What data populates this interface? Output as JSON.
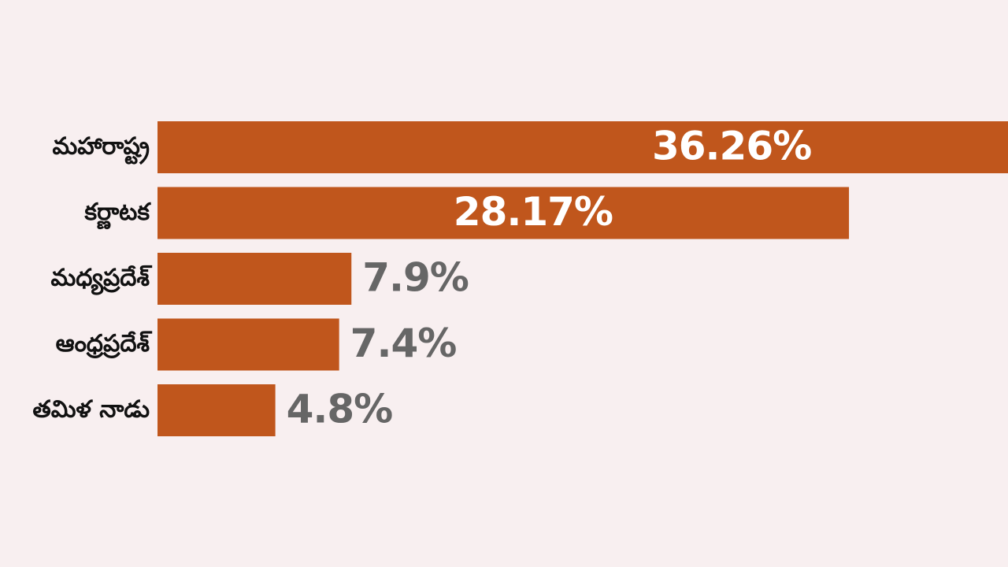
{
  "chart_data": {
    "type": "bar",
    "orientation": "horizontal",
    "categories": [
      "మహారాష్ట్ర",
      "కర్ణాటక",
      "మధ్యప్రదేశ్",
      "ఆంధ్రప్రదేశ్",
      "తమిళ నాడు"
    ],
    "values": [
      36.26,
      28.17,
      7.9,
      7.4,
      4.8
    ],
    "value_labels": [
      "36.26%",
      "28.17%",
      "7.9%",
      "7.4%",
      "4.8%"
    ],
    "color": "#c0561c"
  }
}
